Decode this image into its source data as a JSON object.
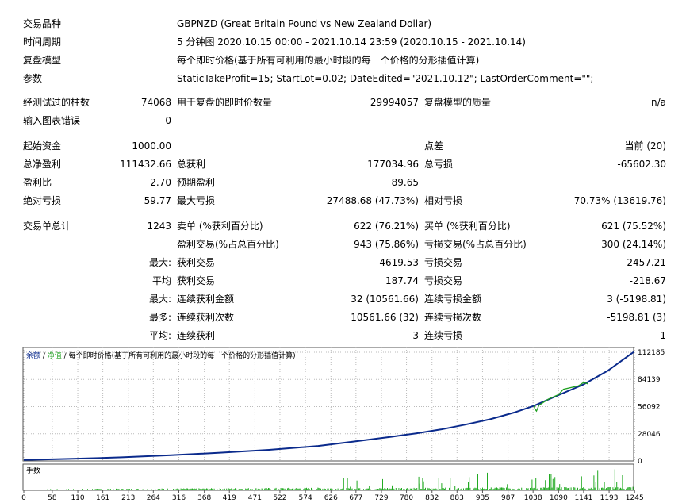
{
  "header": {
    "symbol": {
      "label": "交易品种",
      "value": "GBPNZD (Great Britain Pound vs New Zealand Dollar)"
    },
    "period": {
      "label": "时间周期",
      "value": "5 分钟图 2020.10.15 00:00 - 2021.10.14 23:59 (2020.10.15 - 2021.10.14)"
    },
    "model": {
      "label": "复盘模型",
      "value": "每个即时价格(基于所有可利用的最小时段的每一个价格的分形插值计算)"
    },
    "params": {
      "label": "参数",
      "value": "StaticTakeProfit=15; StartLot=0.02; DateEdited=\"2021.10.12\"; LastOrderComment=\"\";"
    }
  },
  "stats": {
    "bars_tested": {
      "label": "经测试过的柱数",
      "value": "74068"
    },
    "ticks_modelled": {
      "label": "用于复盘的即时价数量",
      "value": "29994057"
    },
    "modelling_quality": {
      "label": "复盘模型的质量",
      "value": "n/a"
    },
    "chart_errors": {
      "label": "输入图表错误",
      "value": "0"
    },
    "initial_deposit": {
      "label": "起始资金",
      "value": "1000.00"
    },
    "spread": {
      "label": "点差",
      "value": "当前 (20)"
    },
    "total_net_profit": {
      "label": "总净盈利",
      "value": "111432.66"
    },
    "gross_profit": {
      "label": "总获利",
      "value": "177034.96"
    },
    "gross_loss": {
      "label": "总亏损",
      "value": "-65602.30"
    },
    "profit_factor": {
      "label": "盈利比",
      "value": "2.70"
    },
    "expected_payoff": {
      "label": "预期盈利",
      "value": "89.65"
    },
    "absolute_drawdown": {
      "label": "绝对亏损",
      "value": "59.77"
    },
    "maximal_drawdown": {
      "label": "最大亏损",
      "value": "27488.68 (47.73%)"
    },
    "relative_drawdown": {
      "label": "相对亏损",
      "value": "70.73% (13619.76)"
    },
    "total_trades": {
      "label": "交易单总计",
      "value": "1243"
    },
    "short_positions": {
      "label": "卖单 (%获利百分比)",
      "value": "622 (76.21%)"
    },
    "long_positions": {
      "label": "买单 (%获利百分比)",
      "value": "621 (75.52%)"
    },
    "profit_trades": {
      "label": "盈利交易(%占总百分比)",
      "value": "943 (75.86%)"
    },
    "loss_trades": {
      "label": "亏损交易(%占总百分比)",
      "value": "300 (24.14%)"
    },
    "largest": {
      "prefix": "最大:",
      "profit_label": "获利交易",
      "profit_value": "4619.53",
      "loss_label": "亏损交易",
      "loss_value": "-2457.21"
    },
    "average": {
      "prefix": "平均",
      "profit_label": "获利交易",
      "profit_value": "187.74",
      "loss_label": "亏损交易",
      "loss_value": "-218.67"
    },
    "max_consecutive": {
      "prefix": "最大:",
      "wins_label": "连续获利金额",
      "wins_value": "32 (10561.66)",
      "losses_label": "连续亏损金额",
      "losses_value": "3 (-5198.81)"
    },
    "max_consecutive_amount": {
      "prefix": "最多:",
      "wins_label": "连续获利次数",
      "wins_value": "10561.66 (32)",
      "losses_label": "连续亏损次数",
      "losses_value": "-5198.81 (3)"
    },
    "avg_consecutive": {
      "prefix": "平均:",
      "wins_label": "连续获利",
      "wins_value": "3",
      "losses_label": "连续亏损",
      "losses_value": "1"
    }
  },
  "chart": {
    "legend_balance": "余额",
    "legend_sep1": " / ",
    "legend_equity": "净值",
    "legend_sep2": " / ",
    "legend_model": "每个即时价格(基于所有可利用的最小时段的每一个价格的分形插值计算)",
    "volume_label": "手数",
    "colors": {
      "balance": "#0a2a8c",
      "equity": "#1fa020",
      "volume": "#22aa22",
      "grid": "#bbbbbb"
    }
  },
  "chart_data": {
    "type": "line",
    "y_ticks": [
      "112185",
      "84139",
      "56092",
      "28046",
      "0"
    ],
    "x_ticks": [
      "0",
      "58",
      "110",
      "161",
      "213",
      "264",
      "316",
      "368",
      "419",
      "471",
      "522",
      "574",
      "626",
      "677",
      "729",
      "780",
      "832",
      "883",
      "935",
      "987",
      "1038",
      "1090",
      "1141",
      "1193",
      "1245"
    ],
    "ylim": [
      0,
      112185
    ],
    "xlim": [
      0,
      1243
    ],
    "series": [
      {
        "name": "余额",
        "x": [
          0,
          100,
          200,
          300,
          400,
          500,
          600,
          680,
          750,
          800,
          850,
          900,
          950,
          1000,
          1040,
          1090,
          1141,
          1190,
          1243
        ],
        "y": [
          1000,
          2200,
          3800,
          5900,
          8500,
          11500,
          15500,
          20500,
          25000,
          28500,
          32500,
          37500,
          43000,
          50000,
          57000,
          68000,
          79000,
          93000,
          112432
        ]
      },
      {
        "name": "净值",
        "x": [
          1040,
          1042,
          1045,
          1050,
          1070,
          1090,
          1100,
          1130,
          1141,
          1150
        ],
        "y": [
          57000,
          53500,
          51500,
          57500,
          64000,
          68500,
          74000,
          77500,
          81000,
          79500
        ]
      }
    ],
    "volume_series": {
      "name": "手数",
      "x_range": [
        0,
        1243
      ]
    }
  }
}
